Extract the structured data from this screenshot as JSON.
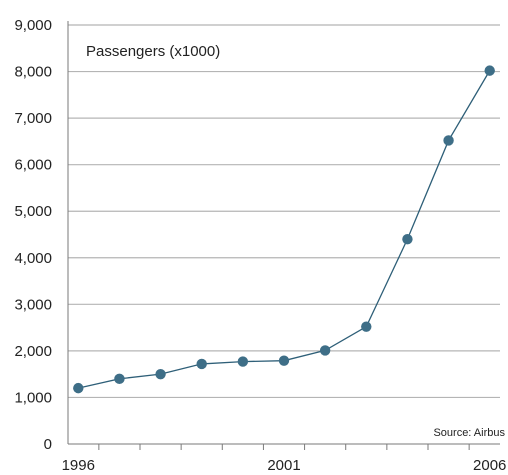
{
  "chart_data": {
    "type": "line",
    "title": "Passengers (x1000)",
    "source": "Source: Airbus",
    "xlabel": "",
    "ylabel": "",
    "x": [
      1996,
      1997,
      1998,
      1999,
      2000,
      2001,
      2002,
      2003,
      2004,
      2005,
      2006
    ],
    "xlim": [
      1995.75,
      2006.25
    ],
    "x_tick_labels": [
      "1996",
      "2001",
      "2006"
    ],
    "ylim": [
      0,
      9000
    ],
    "y_tick_labels": [
      "0",
      "1,000",
      "2,000",
      "3,000",
      "4,000",
      "5,000",
      "6,000",
      "7,000",
      "8,000",
      "9,000"
    ],
    "grid": true,
    "series": [
      {
        "values": [
          1200,
          1400,
          1500,
          1720,
          1770,
          1790,
          2010,
          2520,
          4400,
          6520,
          8020
        ]
      }
    ],
    "colors": {
      "line": "#2e5f78",
      "marker": "#3e6e87",
      "grid": "#b5b5b5",
      "axis": "#7a7a7a"
    }
  }
}
